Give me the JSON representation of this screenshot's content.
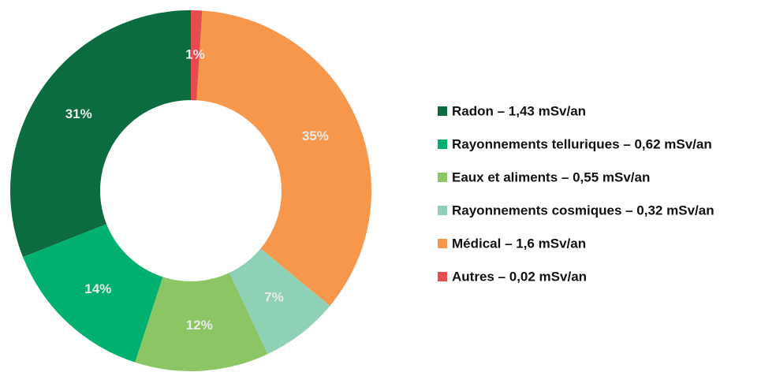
{
  "chart_data": {
    "type": "donut",
    "categories": [
      "Radon – 1,43 mSv/an",
      "Rayonnements telluriques – 0,62 mSv/an",
      "Eaux et aliments – 0,55 mSv/an",
      "Rayonnements cosmiques – 0,32 mSv/an",
      "Médical – 1,6 mSv/an",
      "Autres – 0,02 mSv/an"
    ],
    "values": [
      31,
      14,
      12,
      7,
      35,
      1
    ],
    "value_labels": [
      "31%",
      "14%",
      "12%",
      "7%",
      "35%",
      "1%"
    ],
    "colors": [
      "#0b6d3f",
      "#00b06e",
      "#8cc664",
      "#8fd1b7",
      "#f7974c",
      "#e84b4e"
    ],
    "direction": "counterclockwise",
    "legend": "right"
  }
}
